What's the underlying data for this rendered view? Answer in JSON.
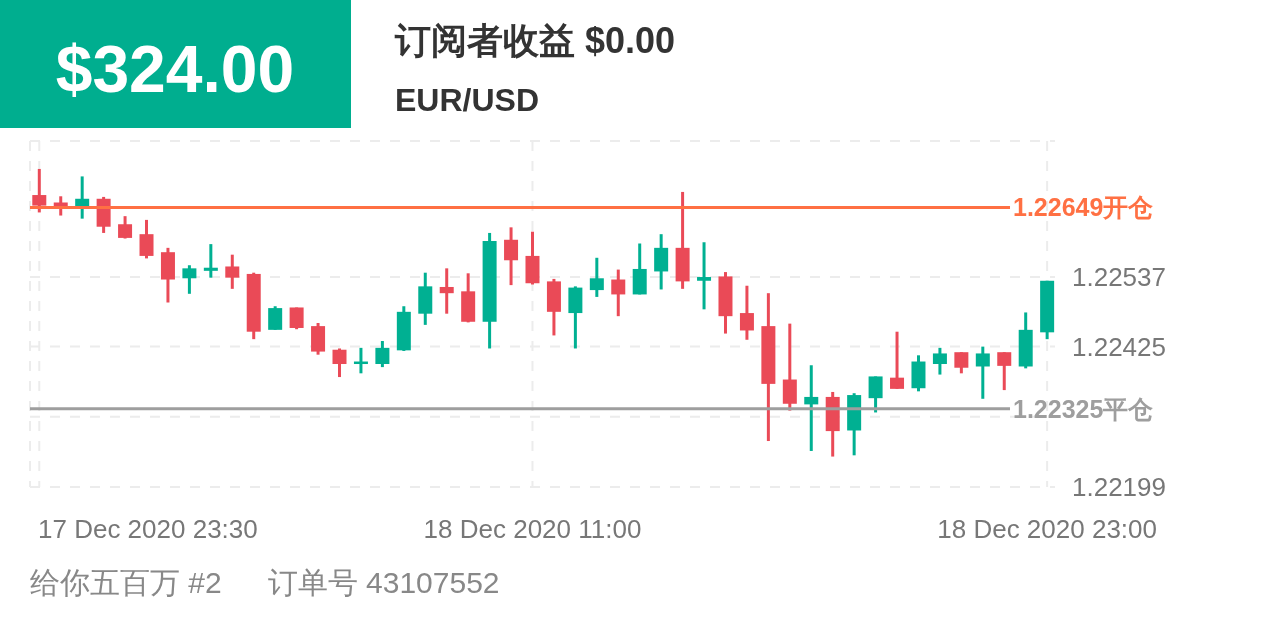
{
  "chart_data": {
    "type": "candlestick",
    "title": "订阅者收益 $0.00",
    "subtitle": "EUR/USD",
    "annotations": [
      "$324.00",
      "给你五百万 #2",
      "订单号 43107552"
    ],
    "x": [
      "2020-12-17T23:30",
      "2020-12-18T00:00",
      "2020-12-18T00:30",
      "2020-12-18T01:00",
      "2020-12-18T01:30",
      "2020-12-18T02:00",
      "2020-12-18T02:30",
      "2020-12-18T03:00",
      "2020-12-18T03:30",
      "2020-12-18T04:00",
      "2020-12-18T04:30",
      "2020-12-18T05:00",
      "2020-12-18T05:30",
      "2020-12-18T06:00",
      "2020-12-18T06:30",
      "2020-12-18T07:00",
      "2020-12-18T07:30",
      "2020-12-18T08:00",
      "2020-12-18T08:30",
      "2020-12-18T09:00",
      "2020-12-18T09:30",
      "2020-12-18T10:00",
      "2020-12-18T10:30",
      "2020-12-18T11:00",
      "2020-12-18T11:30",
      "2020-12-18T12:00",
      "2020-12-18T12:30",
      "2020-12-18T13:00",
      "2020-12-18T13:30",
      "2020-12-18T14:00",
      "2020-12-18T14:30",
      "2020-12-18T15:00",
      "2020-12-18T15:30",
      "2020-12-18T16:00",
      "2020-12-18T16:30",
      "2020-12-18T17:00",
      "2020-12-18T17:30",
      "2020-12-18T18:00",
      "2020-12-18T18:30",
      "2020-12-18T19:00",
      "2020-12-18T19:30",
      "2020-12-18T20:00",
      "2020-12-18T20:30",
      "2020-12-18T21:00",
      "2020-12-18T21:30",
      "2020-12-18T22:00",
      "2020-12-18T22:30",
      "2020-12-18T23:00"
    ],
    "ohlc": [
      [
        1.22669,
        1.22711,
        1.22641,
        1.22652
      ],
      [
        1.22657,
        1.22667,
        1.22636,
        1.22651
      ],
      [
        1.22647,
        1.22699,
        1.22631,
        1.22663
      ],
      [
        1.22663,
        1.22666,
        1.22608,
        1.22618
      ],
      [
        1.22622,
        1.22635,
        1.22599,
        1.226
      ],
      [
        1.22606,
        1.22629,
        1.22567,
        1.22571
      ],
      [
        1.22577,
        1.22584,
        1.22496,
        1.22533
      ],
      [
        1.22535,
        1.22556,
        1.2251,
        1.22551
      ],
      [
        1.22547,
        1.2259,
        1.22536,
        1.22552
      ],
      [
        1.22554,
        1.22573,
        1.22518,
        1.22536
      ],
      [
        1.22542,
        1.22544,
        1.22437,
        1.22449
      ],
      [
        1.22452,
        1.2249,
        1.22452,
        1.22487
      ],
      [
        1.22488,
        1.22488,
        1.22453,
        1.22455
      ],
      [
        1.22458,
        1.22463,
        1.22412,
        1.22417
      ],
      [
        1.2242,
        1.22422,
        1.22376,
        1.22397
      ],
      [
        1.22397,
        1.22423,
        1.22382,
        1.22401
      ],
      [
        1.22397,
        1.22434,
        1.22392,
        1.22423
      ],
      [
        1.22419,
        1.2249,
        1.22418,
        1.22481
      ],
      [
        1.22478,
        1.22544,
        1.2246,
        1.22522
      ],
      [
        1.22521,
        1.22551,
        1.22478,
        1.22511
      ],
      [
        1.22514,
        1.22543,
        1.22464,
        1.22465
      ],
      [
        1.22465,
        1.22608,
        1.22422,
        1.22595
      ],
      [
        1.22597,
        1.22617,
        1.22524,
        1.22564
      ],
      [
        1.22571,
        1.2261,
        1.22525,
        1.22527
      ],
      [
        1.2253,
        1.22534,
        1.22443,
        1.22481
      ],
      [
        1.22479,
        1.22522,
        1.22422,
        1.2252
      ],
      [
        1.22516,
        1.22568,
        1.22505,
        1.22535
      ],
      [
        1.22533,
        1.22549,
        1.22474,
        1.22509
      ],
      [
        1.22509,
        1.22591,
        1.22509,
        1.2255
      ],
      [
        1.22546,
        1.22606,
        1.22517,
        1.22584
      ],
      [
        1.22584,
        1.22674,
        1.22518,
        1.2253
      ],
      [
        1.22531,
        1.22593,
        1.22485,
        1.22537
      ],
      [
        1.22538,
        1.22545,
        1.22446,
        1.22474
      ],
      [
        1.22479,
        1.22523,
        1.22436,
        1.22451
      ],
      [
        1.22458,
        1.22511,
        1.22273,
        1.22365
      ],
      [
        1.22372,
        1.22462,
        1.22322,
        1.22333
      ],
      [
        1.22332,
        1.22395,
        1.22257,
        1.22344
      ],
      [
        1.22344,
        1.22352,
        1.22248,
        1.22289
      ],
      [
        1.2229,
        1.2235,
        1.2225,
        1.22347
      ],
      [
        1.22342,
        1.22377,
        1.22319,
        1.22377
      ],
      [
        1.22375,
        1.22449,
        1.22357,
        1.22357
      ],
      [
        1.22358,
        1.22411,
        1.22353,
        1.22401
      ],
      [
        1.22397,
        1.22423,
        1.2238,
        1.22414
      ],
      [
        1.22416,
        1.22416,
        1.22382,
        1.22391
      ],
      [
        1.22393,
        1.22425,
        1.22341,
        1.22414
      ],
      [
        1.22416,
        1.22416,
        1.22355,
        1.22394
      ],
      [
        1.22393,
        1.2248,
        1.2239,
        1.22452
      ],
      [
        1.22448,
        1.22531,
        1.22437,
        1.22531
      ]
    ],
    "colors": [
      "#ea4a57",
      "#ea4a57",
      "#00b092",
      "#ea4a57",
      "#ea4a57",
      "#ea4a57",
      "#ea4a57",
      "#00b092",
      "#00b092",
      "#ea4a57",
      "#ea4a57",
      "#00b092",
      "#ea4a57",
      "#ea4a57",
      "#ea4a57",
      "#00b092",
      "#00b092",
      "#00b092",
      "#00b092",
      "#ea4a57",
      "#ea4a57",
      "#00b092",
      "#ea4a57",
      "#ea4a57",
      "#ea4a57",
      "#00b092",
      "#00b092",
      "#ea4a57",
      "#00b092",
      "#00b092",
      "#ea4a57",
      "#00b092",
      "#ea4a57",
      "#ea4a57",
      "#ea4a57",
      "#ea4a57",
      "#00b092",
      "#ea4a57",
      "#00b092",
      "#00b092",
      "#ea4a57",
      "#00b092",
      "#00b092",
      "#ea4a57",
      "#00b092",
      "#ea4a57",
      "#00b092",
      "#00b092"
    ],
    "xlim": [
      "2020-12-17T23:17",
      "2020-12-18T23:11"
    ],
    "xticks": [
      {
        "value": "2020-12-17T23:30",
        "label": "17 Dec 2020 23:30"
      },
      {
        "value": "2020-12-18T11:00",
        "label": "18 Dec 2020 11:00"
      },
      {
        "value": "2020-12-18T23:00",
        "label": "18 Dec 2020 23:00"
      }
    ],
    "ylim": [
      1.22199,
      1.22756
    ],
    "yticks": [
      1.22537,
      1.22425,
      {
        "value": 1.22312,
        "label": null
      },
      1.22199
    ],
    "ref_lines": [
      {
        "axis": "y",
        "value": 1.22649,
        "label": "1.22649开仓",
        "color": "#ff7043"
      },
      {
        "axis": "y",
        "value": 1.22325,
        "label": "1.22325平仓",
        "color": "#9e9e9e"
      }
    ],
    "grid": true
  }
}
